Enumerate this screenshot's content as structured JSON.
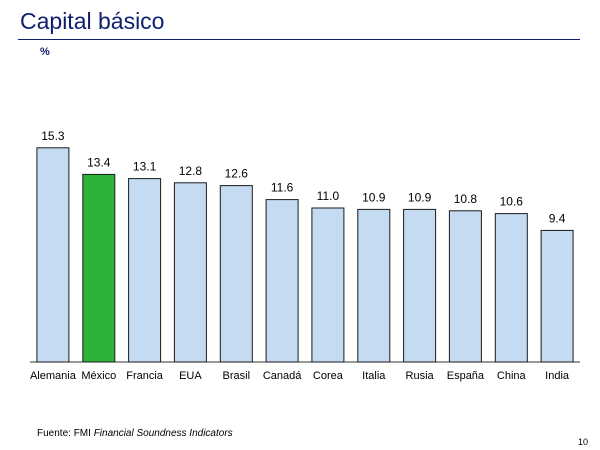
{
  "slide": {
    "title": "Capital básico",
    "unit": "%",
    "source_prefix": "Fuente: FMI ",
    "source_name": "Financial Soundness Indicators",
    "page_number": "10"
  },
  "colors": {
    "title": "#0d1f6e",
    "bar_default": "#c5dbf1",
    "bar_highlight": "#2db23a",
    "bar_outline": "#1a1a1a"
  },
  "chart_data": {
    "type": "bar",
    "categories": [
      "Alemania",
      "México",
      "Francia",
      "EUA",
      "Brasil",
      "Canadá",
      "Corea",
      "Italia",
      "Rusia",
      "España",
      "China",
      "India"
    ],
    "values": [
      15.3,
      13.4,
      13.1,
      12.8,
      12.6,
      11.6,
      11.0,
      10.9,
      10.9,
      10.8,
      10.6,
      9.4
    ],
    "value_labels": [
      "15.3",
      "13.4",
      "13.1",
      "12.8",
      "12.6",
      "11.6",
      "11.0",
      "10.9",
      "10.9",
      "10.8",
      "10.6",
      "9.4"
    ],
    "highlight_index": 1,
    "ylabel": "%",
    "ylim": [
      0,
      16
    ],
    "grid": false,
    "legend": "none"
  }
}
